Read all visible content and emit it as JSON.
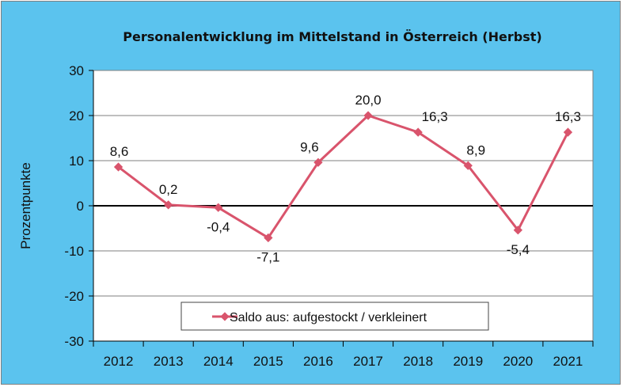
{
  "chart_data": {
    "type": "line",
    "title": "Personalentwicklung im Mittelstand in Österreich (Herbst)",
    "ylabel": "Prozentpunkte",
    "xlabel": "",
    "categories": [
      "2012",
      "2013",
      "2014",
      "2015",
      "2016",
      "2017",
      "2018",
      "2019",
      "2020",
      "2021"
    ],
    "series": [
      {
        "name": "Saldo aus: aufgestockt / verkleinert",
        "values": [
          8.6,
          0.2,
          -0.4,
          -7.1,
          9.6,
          20.0,
          16.3,
          8.9,
          -5.4,
          16.3
        ],
        "labels": [
          "8,6",
          "0,2",
          "-0,4",
          "-7,1",
          "9,6",
          "20,0",
          "16,3",
          "8,9",
          "-5,4",
          "16,3"
        ],
        "color": "#d9546c"
      }
    ],
    "ylim": [
      -30,
      30
    ],
    "yticks": [
      30,
      20,
      10,
      0,
      -10,
      -20,
      -30
    ],
    "grid": true,
    "legend": "bottom-center",
    "colors": {
      "background": "#5bc3ee",
      "plot": "#ffffff",
      "grid": "#7f7f7f",
      "zero_line": "#000000"
    }
  }
}
